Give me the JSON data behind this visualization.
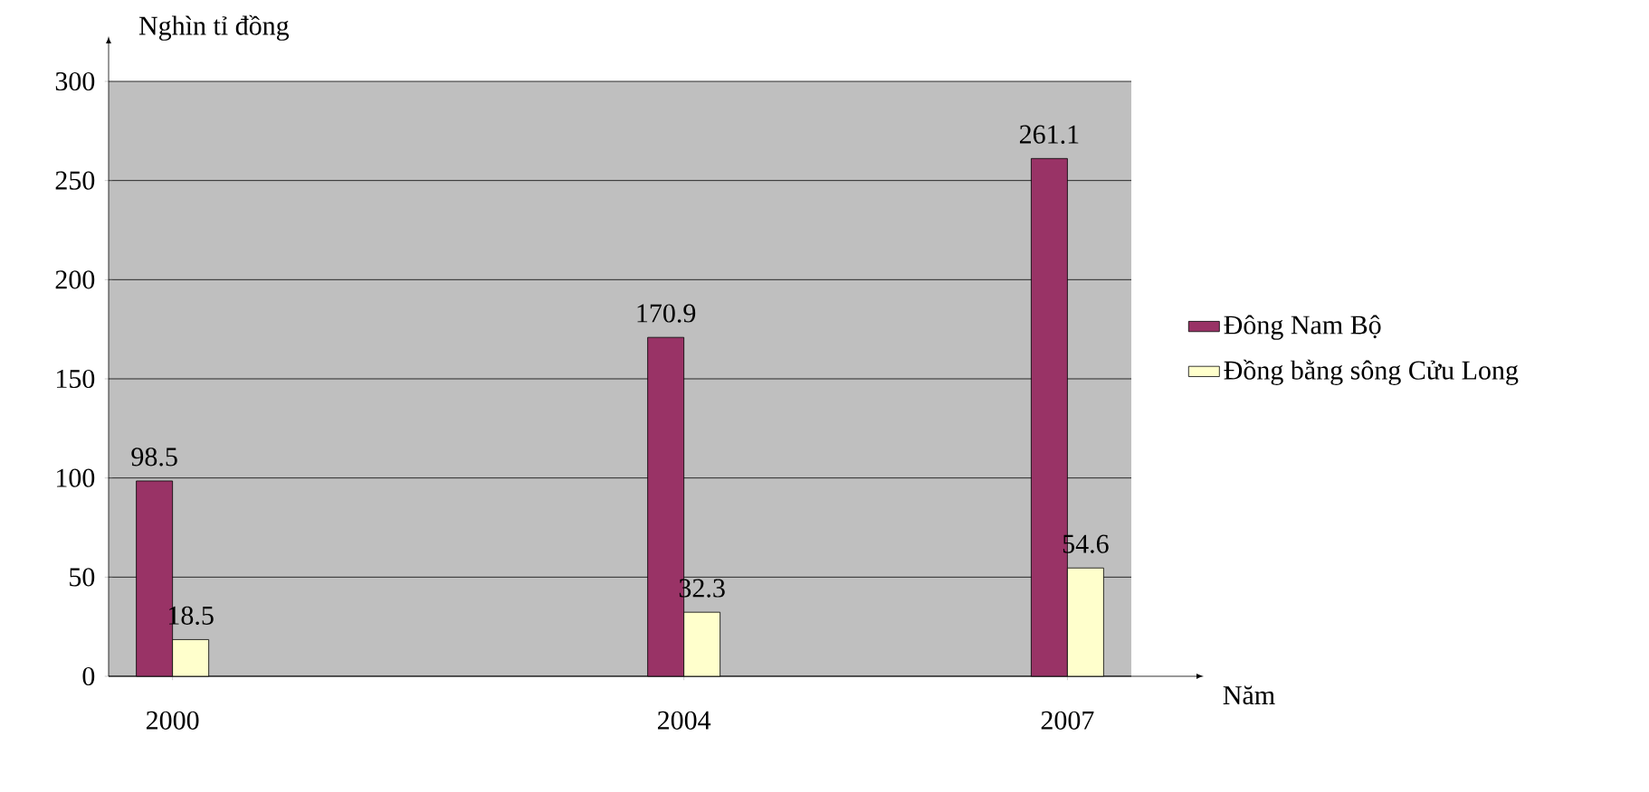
{
  "chart_data": {
    "type": "bar",
    "ylabel": "Nghìn tỉ đồng",
    "xlabel": "Năm",
    "x": [
      2000,
      2004,
      2007
    ],
    "xlim": [
      1999.5,
      2007.5
    ],
    "xticks": [
      2000,
      2004,
      2007
    ],
    "ylim": [
      0,
      300
    ],
    "yticks": [
      0,
      50,
      100,
      150,
      200,
      250,
      300
    ],
    "series": [
      {
        "name": "Đông Nam Bộ",
        "color": "#993366",
        "values": [
          98.5,
          170.9,
          261.1
        ]
      },
      {
        "name": "Đồng bằng sông Cửu Long",
        "color": "#ffffcc",
        "values": [
          18.5,
          32.3,
          54.6
        ]
      }
    ],
    "data_labels": true,
    "grid": "y",
    "legend": "right"
  }
}
